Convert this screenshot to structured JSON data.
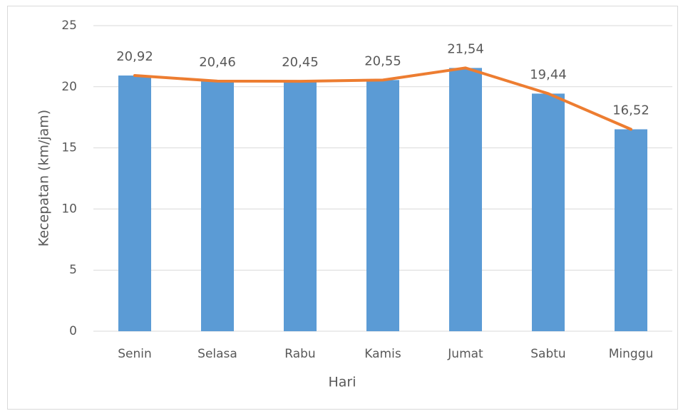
{
  "chart_data": {
    "type": "bar",
    "x_label": "Hari",
    "y_label": "Kecepatan (km/jam)",
    "categories": [
      "Senin",
      "Selasa",
      "Rabu",
      "Kamis",
      "Jumat",
      "Sabtu",
      "Minggu"
    ],
    "series": [
      {
        "type": "bar",
        "color": "#5b9bd5",
        "values": [
          20.92,
          20.46,
          20.45,
          20.55,
          21.54,
          19.44,
          16.52
        ],
        "value_labels": [
          "20,92",
          "20,46",
          "20,45",
          "20,55",
          "21,54",
          "19,44",
          "16,52"
        ]
      },
      {
        "type": "line",
        "color": "#ed7d31",
        "values": [
          20.92,
          20.46,
          20.45,
          20.55,
          21.54,
          19.44,
          16.52
        ]
      }
    ],
    "ylim": [
      0,
      25
    ],
    "yticks": [
      0,
      5,
      10,
      15,
      20,
      25
    ],
    "grid": true
  }
}
